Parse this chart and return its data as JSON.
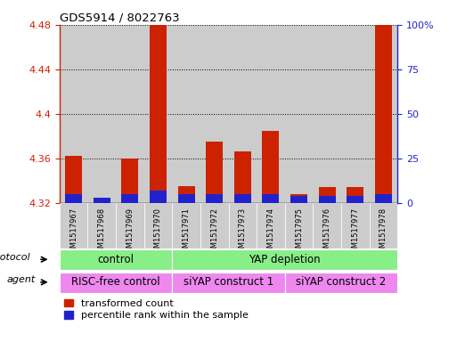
{
  "title": "GDS5914 / 8022763",
  "samples": [
    "GSM1517967",
    "GSM1517968",
    "GSM1517969",
    "GSM1517970",
    "GSM1517971",
    "GSM1517972",
    "GSM1517973",
    "GSM1517974",
    "GSM1517975",
    "GSM1517976",
    "GSM1517977",
    "GSM1517978"
  ],
  "transformed_count": [
    4.362,
    4.322,
    4.36,
    4.48,
    4.335,
    4.375,
    4.366,
    4.385,
    4.328,
    4.334,
    4.334,
    4.48
  ],
  "percentile_rank": [
    5,
    3,
    5,
    7,
    5,
    5,
    5,
    5,
    4,
    4,
    4,
    5
  ],
  "ymin": 4.32,
  "ymax": 4.48,
  "yticks": [
    4.32,
    4.36,
    4.4,
    4.44,
    4.48
  ],
  "ytick_labels": [
    "4.32",
    "4.36",
    "4.4",
    "4.44",
    "4.48"
  ],
  "right_yticks": [
    0,
    25,
    50,
    75,
    100
  ],
  "right_ytick_labels": [
    "0",
    "25",
    "50",
    "75",
    "100%"
  ],
  "bar_color_red": "#cc2200",
  "bar_color_blue": "#2222cc",
  "col_bg_color": "#cccccc",
  "protocol_labels": [
    "control",
    "YAP depletion"
  ],
  "protocol_ranges": [
    [
      0,
      4
    ],
    [
      4,
      12
    ]
  ],
  "protocol_color": "#88ee88",
  "agent_labels": [
    "RISC-free control",
    "siYAP construct 1",
    "siYAP construct 2"
  ],
  "agent_ranges": [
    [
      0,
      4
    ],
    [
      4,
      8
    ],
    [
      8,
      12
    ]
  ],
  "agent_color": "#ee88ee",
  "legend_items": [
    "transformed count",
    "percentile rank within the sample"
  ],
  "left_axis_color": "#cc2200",
  "right_axis_color": "#2222cc"
}
